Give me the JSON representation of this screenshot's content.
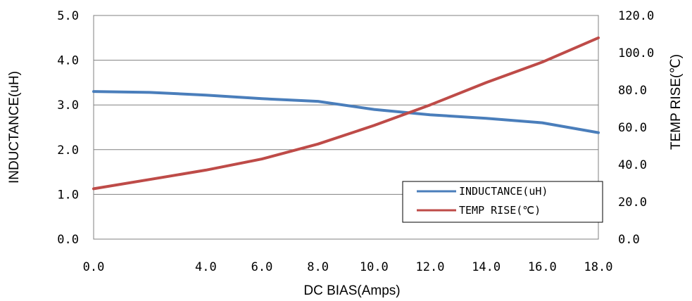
{
  "chart_data": {
    "type": "line",
    "xlabel": "DC BIAS(Amps)",
    "ylabel": "INDUCTANCE(uH)",
    "y2label": "TEMP RISE(℃)",
    "xlim": [
      0,
      18
    ],
    "ylim": [
      0,
      5
    ],
    "y2lim": [
      0,
      120
    ],
    "x_ticks": [
      "0.0",
      "4.0",
      "6.0",
      "8.0",
      "10.0",
      "12.0",
      "14.0",
      "16.0",
      "18.0"
    ],
    "x_tick_values": [
      0,
      4,
      6,
      8,
      10,
      12,
      14,
      16,
      18
    ],
    "y_ticks": [
      "0.0",
      "1.0",
      "2.0",
      "3.0",
      "4.0",
      "5.0"
    ],
    "y_tick_values": [
      0,
      1,
      2,
      3,
      4,
      5
    ],
    "y2_ticks": [
      "0.0",
      "20.0",
      "40.0",
      "60.0",
      "80.0",
      "100.0",
      "120.0"
    ],
    "y2_tick_values": [
      0,
      20,
      40,
      60,
      80,
      100,
      120
    ],
    "grid": "horizontal",
    "legend_position": "bottom-right",
    "series": [
      {
        "name": "INDUCTANCE(uH)",
        "axis": "left",
        "color": "#4a7ebb",
        "x": [
          0,
          2,
          4,
          6,
          8,
          10,
          12,
          14,
          16,
          18
        ],
        "y": [
          3.3,
          3.28,
          3.22,
          3.14,
          3.08,
          2.9,
          2.78,
          2.7,
          2.6,
          2.38
        ]
      },
      {
        "name": "TEMP RISE(℃)",
        "axis": "right",
        "color": "#be4b48",
        "x": [
          0,
          2,
          4,
          6,
          8,
          10,
          12,
          14,
          16,
          18
        ],
        "y": [
          27,
          32,
          37,
          43,
          51,
          61,
          72,
          84,
          95,
          108
        ]
      }
    ]
  }
}
